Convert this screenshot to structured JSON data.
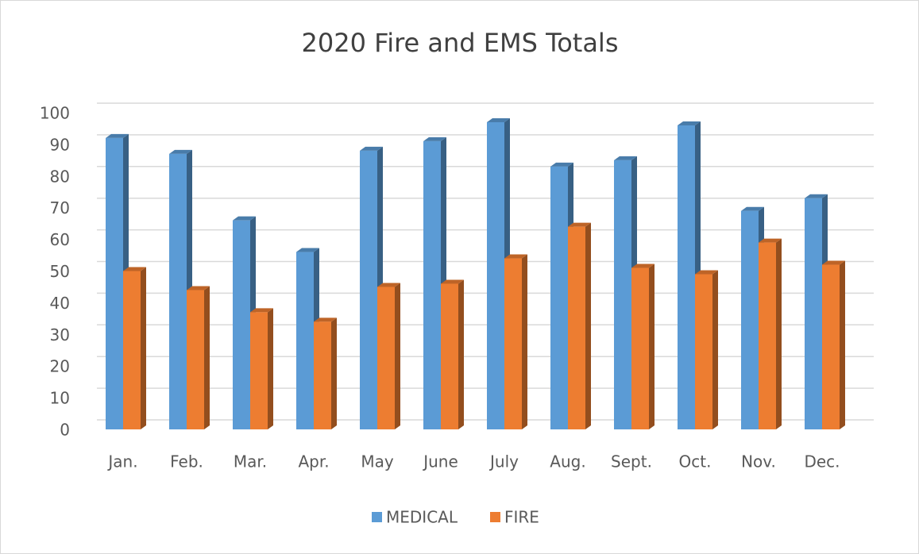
{
  "chart_data": {
    "type": "bar",
    "title": "2020 Fire and EMS Totals",
    "categories": [
      "Jan.",
      "Feb.",
      "Mar.",
      "Apr.",
      "May",
      "June",
      "July",
      "Aug.",
      "Sept.",
      "Oct.",
      "Nov.",
      "Dec."
    ],
    "series": [
      {
        "name": "MEDICAL",
        "color": "#5b9bd5",
        "values": [
          92,
          87,
          66,
          56,
          88,
          91,
          97,
          83,
          85,
          96,
          69,
          73
        ]
      },
      {
        "name": "FIRE",
        "color": "#ed7d31",
        "values": [
          50,
          44,
          37,
          34,
          45,
          46,
          54,
          64,
          51,
          49,
          59,
          52
        ]
      }
    ],
    "ylim": [
      0,
      100
    ],
    "yticks": [
      0,
      10,
      20,
      30,
      40,
      50,
      60,
      70,
      80,
      90,
      100
    ],
    "grid": true,
    "legend": "bottom"
  }
}
